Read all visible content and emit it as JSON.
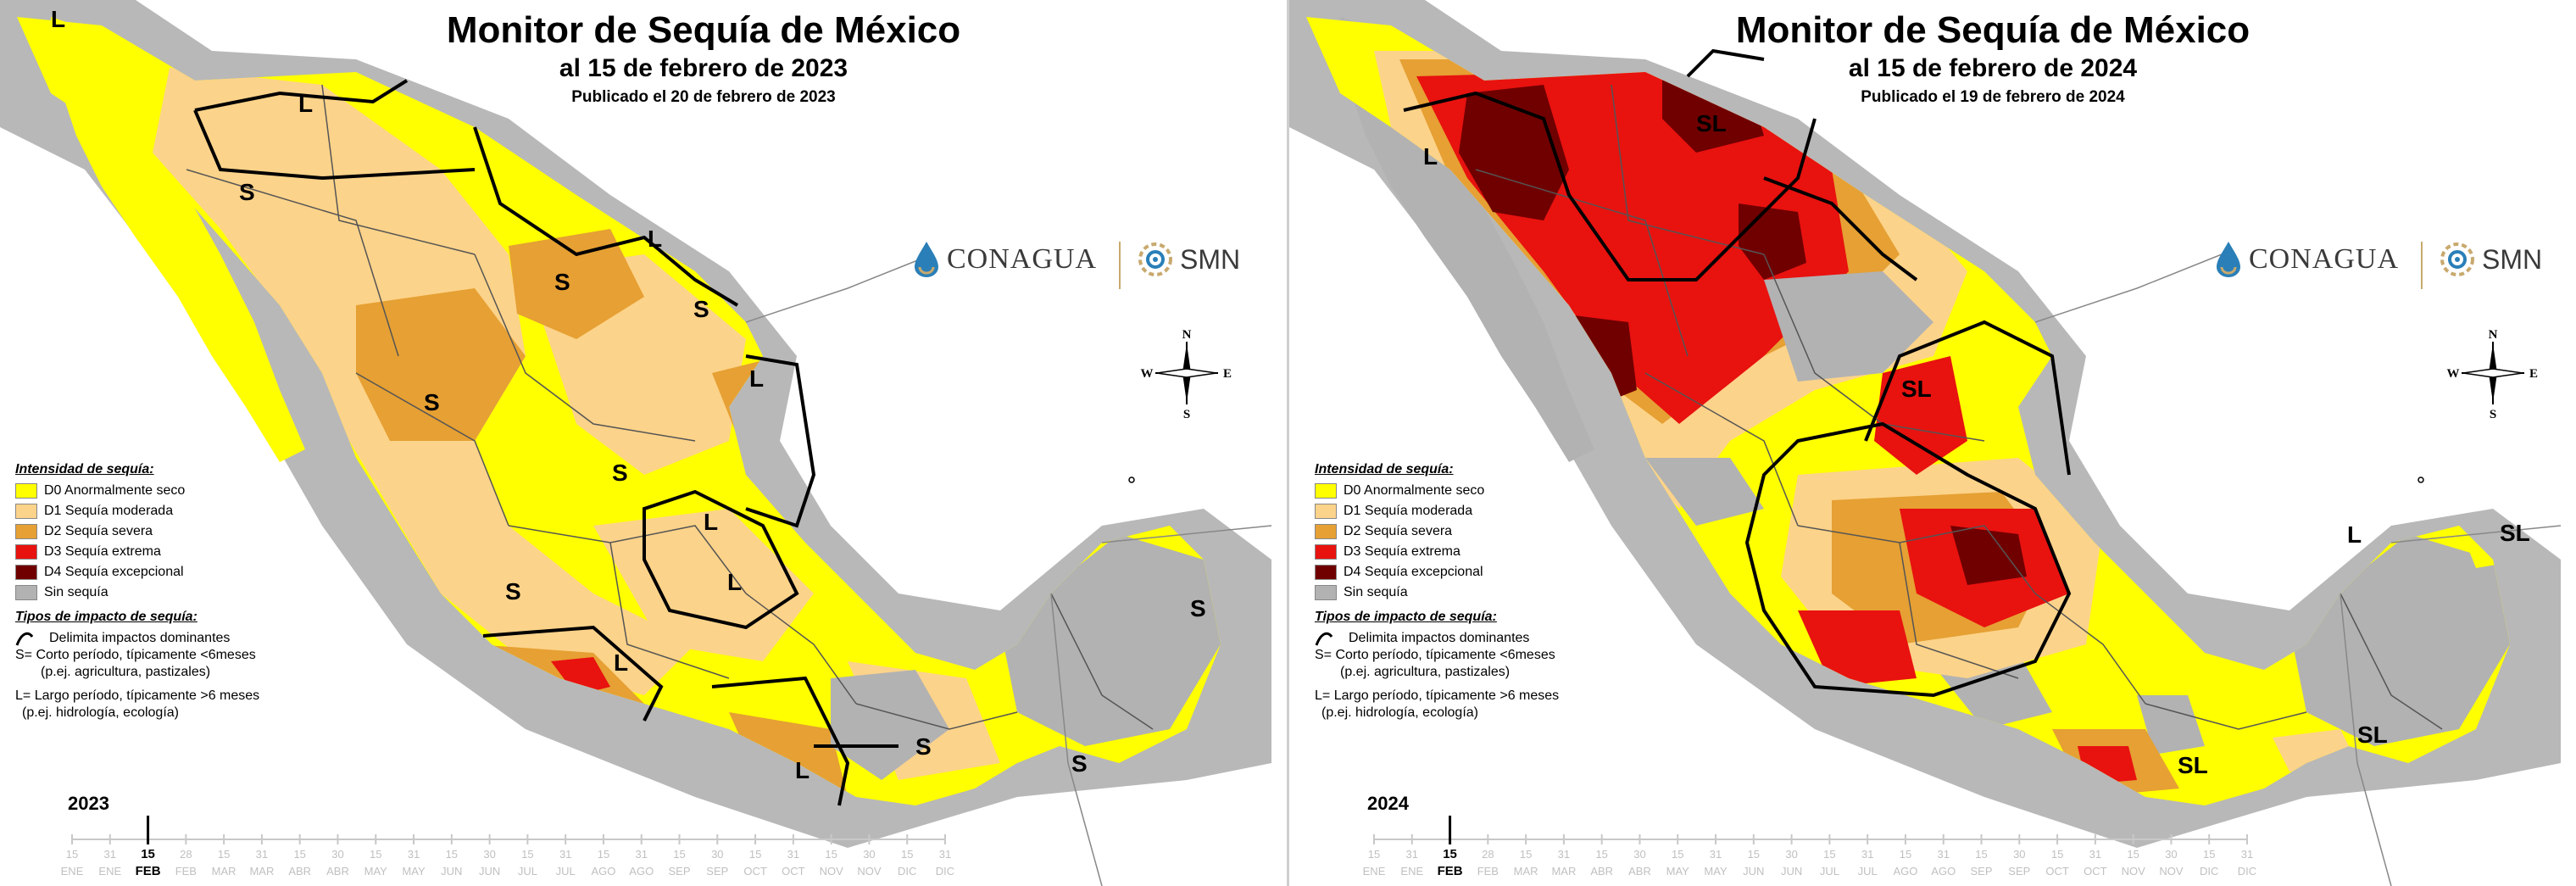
{
  "colors": {
    "D0": "#ffff00",
    "D1": "#fcd38a",
    "D2": "#e6a033",
    "D3": "#e8120f",
    "D4": "#700000",
    "none": "#b2b2b2",
    "water": "#ffffff",
    "land_outside": "#ffffff"
  },
  "legend": {
    "intensity_title": "Intensidad de sequía:",
    "items": [
      {
        "code": "D0",
        "label": "D0 Anormalmente seco"
      },
      {
        "code": "D1",
        "label": "D1 Sequía moderada"
      },
      {
        "code": "D2",
        "label": "D2 Sequía severa"
      },
      {
        "code": "D3",
        "label": "D3 Sequía extrema"
      },
      {
        "code": "D4",
        "label": "D4 Sequía excepcional"
      },
      {
        "code": "none",
        "label": "Sin sequía"
      }
    ],
    "impact_title": "Tipos de impacto de sequía:",
    "impact_line": "Delimita impactos dominantes",
    "short_term": "S= Corto período, típicamente <6meses",
    "short_term_example": "(p.ej. agricultura, pastizales)",
    "long_term": "L= Largo período, típicamente >6 meses",
    "long_term_example": "(p.ej. hidrología, ecología)"
  },
  "logos": {
    "conagua": "CONAGUA",
    "smn": "SMN"
  },
  "compass": {
    "n": "N",
    "s": "S",
    "e": "E",
    "w": "W"
  },
  "timeline": {
    "days": [
      "15",
      "31",
      "15",
      "28",
      "15",
      "31",
      "15",
      "30",
      "15",
      "31",
      "15",
      "30",
      "15",
      "31",
      "15",
      "31",
      "15",
      "30",
      "15",
      "31",
      "15",
      "30",
      "15",
      "31"
    ],
    "months": [
      "ENE",
      "ENE",
      "FEB",
      "FEB",
      "MAR",
      "MAR",
      "ABR",
      "ABR",
      "MAY",
      "MAY",
      "JUN",
      "JUN",
      "JUL",
      "JUL",
      "AGO",
      "AGO",
      "SEP",
      "SEP",
      "OCT",
      "OCT",
      "NOV",
      "NOV",
      "DIC",
      "DIC"
    ],
    "marker_index": 2
  },
  "panels": [
    {
      "title": "Monitor de Sequía de México",
      "subtitle": "al 15 de febrero de 2023",
      "published": "Publicado el 20 de febrero de 2023",
      "year": "2023",
      "region_labels": [
        {
          "text": "L"
        },
        {
          "text": "L"
        },
        {
          "text": "S"
        },
        {
          "text": "L"
        },
        {
          "text": "S"
        },
        {
          "text": "S"
        },
        {
          "text": "S"
        },
        {
          "text": "L"
        },
        {
          "text": "S"
        },
        {
          "text": "L"
        },
        {
          "text": "S"
        },
        {
          "text": "L"
        },
        {
          "text": "L"
        },
        {
          "text": "S"
        },
        {
          "text": "S"
        },
        {
          "text": "S"
        },
        {
          "text": "L"
        }
      ]
    },
    {
      "title": "Monitor de Sequía de México",
      "subtitle": "al 15 de febrero de 2024",
      "published": "Publicado el 19 de febrero de 2024",
      "year": "2024",
      "region_labels": [
        {
          "text": "SL"
        },
        {
          "text": "L"
        },
        {
          "text": "SL"
        },
        {
          "text": "L"
        },
        {
          "text": "SL"
        },
        {
          "text": "SL"
        },
        {
          "text": "SL"
        }
      ]
    }
  ]
}
